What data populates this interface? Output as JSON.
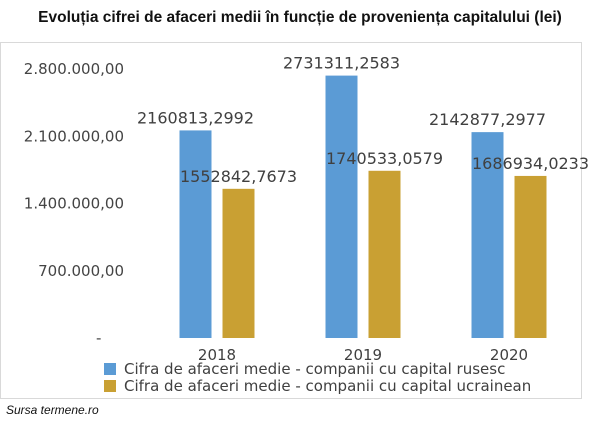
{
  "page": {
    "title": "Evoluția cifrei de afaceri medii în funcție de proveniența capitalului (lei)",
    "source": "Sursa termene.ro"
  },
  "chart_data": {
    "type": "bar",
    "title": "Evoluția cifrei de afaceri medii în funcție de proveniența capitalului (lei)",
    "categories": [
      "2018",
      "2019",
      "2020"
    ],
    "series": [
      {
        "name": "Cifra de afaceri medie - companii cu capital rusesc",
        "values": [
          2160813.2992,
          2731311.2583,
          2142877.2977
        ],
        "labels": [
          "2160813,2992",
          "2731311,2583",
          "2142877,2977"
        ],
        "color": "#5b9bd5"
      },
      {
        "name": "Cifra de afaceri medie - companii cu capital ucrainean",
        "values": [
          1552842.7673,
          1740533.0579,
          1686934.0233
        ],
        "labels": [
          "1552842,7673",
          "1740533,0579",
          "1686934,0233"
        ],
        "color": "#c9a033"
      }
    ],
    "ylim": [
      0,
      2800000
    ],
    "yticks": [
      0,
      700000,
      1400000,
      2100000,
      2800000
    ],
    "ytick_labels": [
      "-",
      "700.000,00",
      "1.400.000,00",
      "2.100.000,00",
      "2.800.000,00"
    ],
    "grid": false,
    "legend_position": "bottom"
  }
}
